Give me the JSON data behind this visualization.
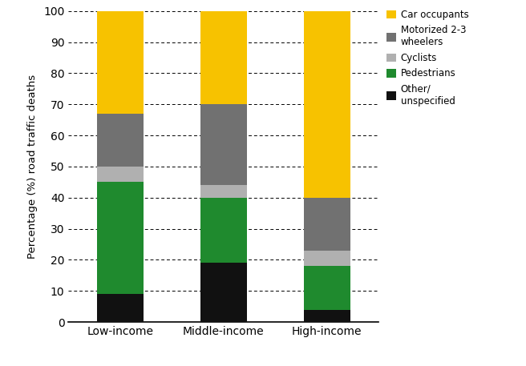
{
  "categories": [
    "Low-income",
    "Middle-income",
    "High-income"
  ],
  "series": [
    {
      "label": "Other/\nunspecified",
      "color": "#111111",
      "values": [
        9,
        19,
        4
      ]
    },
    {
      "label": "Pedestrians",
      "color": "#1f8a2e",
      "values": [
        36,
        21,
        14
      ]
    },
    {
      "label": "Cyclists",
      "color": "#b0b0b0",
      "values": [
        5,
        4,
        5
      ]
    },
    {
      "label": "Motorized 2-3\nwheelers",
      "color": "#717171",
      "values": [
        17,
        26,
        17
      ]
    },
    {
      "label": "Car occupants",
      "color": "#f7c200",
      "values": [
        33,
        30,
        60
      ]
    }
  ],
  "ylabel": "Percentage (%) road traffic deaths",
  "ylim": [
    0,
    100
  ],
  "yticks": [
    0,
    10,
    20,
    30,
    40,
    50,
    60,
    70,
    80,
    90,
    100
  ],
  "legend_labels": [
    "Car occupants",
    "Motorized 2-3\nwheelers",
    "Cyclists",
    "Pedestrians",
    "Other/\nunspecified"
  ],
  "legend_colors": [
    "#f7c200",
    "#717171",
    "#b0b0b0",
    "#1f8a2e",
    "#111111"
  ],
  "background_color": "#ffffff",
  "bar_width": 0.45
}
